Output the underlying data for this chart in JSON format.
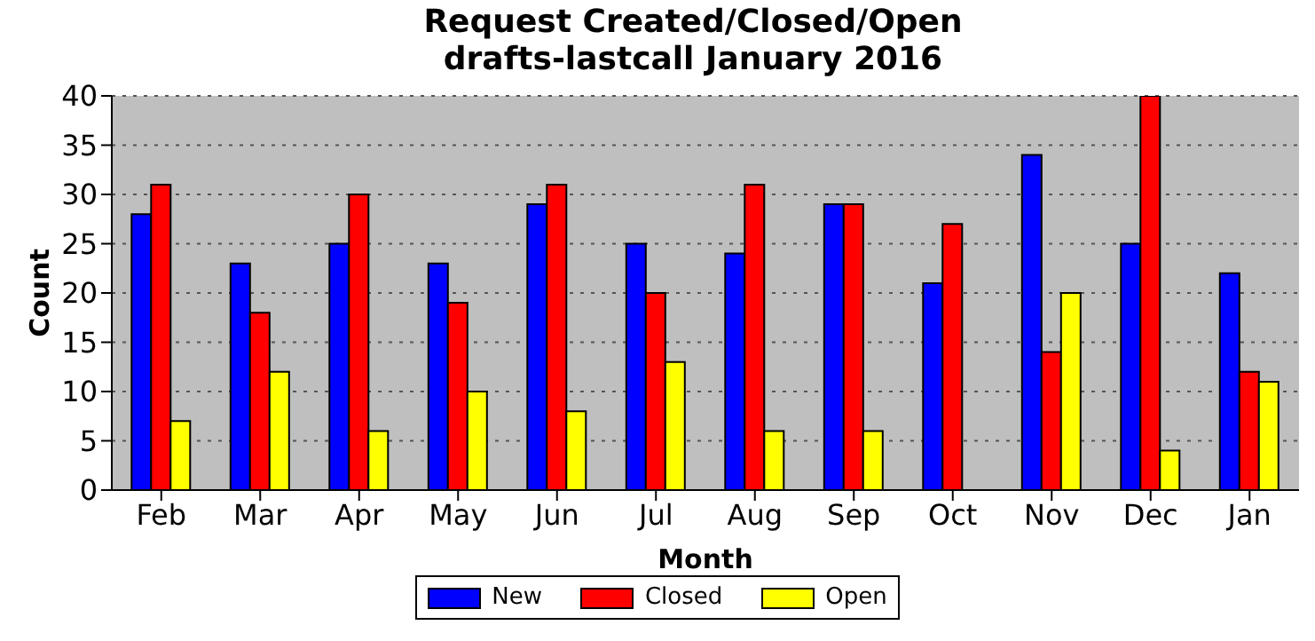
{
  "chart_data": {
    "type": "bar",
    "title": "Request Created/Closed/Open",
    "subtitle": "drafts-lastcall January 2016",
    "xlabel": "Month",
    "ylabel": "Count",
    "categories": [
      "Feb",
      "Mar",
      "Apr",
      "May",
      "Jun",
      "Jul",
      "Aug",
      "Sep",
      "Oct",
      "Nov",
      "Dec",
      "Jan"
    ],
    "series": [
      {
        "name": "New",
        "color": "#0000ff",
        "values": [
          28,
          23,
          25,
          23,
          29,
          25,
          24,
          29,
          21,
          34,
          25,
          22
        ]
      },
      {
        "name": "Closed",
        "color": "#ff0000",
        "values": [
          31,
          18,
          30,
          19,
          31,
          20,
          31,
          29,
          27,
          14,
          40,
          12
        ]
      },
      {
        "name": "Open",
        "color": "#ffff00",
        "values": [
          7,
          12,
          6,
          10,
          8,
          13,
          6,
          6,
          0,
          20,
          4,
          11
        ]
      }
    ],
    "ylim": [
      0,
      40
    ],
    "yticks": [
      0,
      5,
      10,
      15,
      20,
      25,
      30,
      35,
      40
    ],
    "grid": "y",
    "legend": "bottom"
  }
}
